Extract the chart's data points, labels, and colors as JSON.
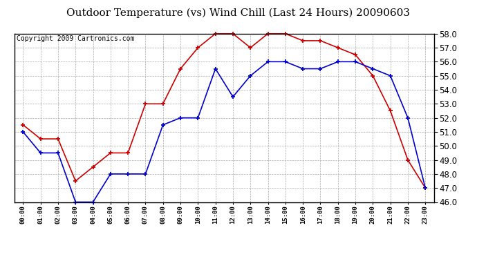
{
  "title": "Outdoor Temperature (vs) Wind Chill (Last 24 Hours) 20090603",
  "copyright": "Copyright 2009 Cartronics.com",
  "hours": [
    "00:00",
    "01:00",
    "02:00",
    "03:00",
    "04:00",
    "05:00",
    "06:00",
    "07:00",
    "08:00",
    "09:00",
    "10:00",
    "11:00",
    "12:00",
    "13:00",
    "14:00",
    "15:00",
    "16:00",
    "17:00",
    "18:00",
    "19:00",
    "20:00",
    "21:00",
    "22:00",
    "23:00"
  ],
  "outdoor_temp": [
    51.5,
    50.5,
    50.5,
    47.5,
    48.5,
    49.5,
    49.5,
    53.0,
    53.0,
    55.5,
    57.0,
    58.0,
    58.0,
    57.0,
    58.0,
    58.0,
    57.5,
    57.5,
    57.0,
    56.5,
    55.0,
    52.5,
    49.0,
    47.0
  ],
  "wind_chill": [
    51.0,
    49.5,
    49.5,
    46.0,
    46.0,
    48.0,
    48.0,
    48.0,
    51.5,
    52.0,
    52.0,
    55.5,
    53.5,
    55.0,
    56.0,
    56.0,
    55.5,
    55.5,
    56.0,
    56.0,
    55.5,
    55.0,
    52.0,
    47.0
  ],
  "temp_color": "#cc0000",
  "chill_color": "#0000cc",
  "ylim_min": 46.0,
  "ylim_max": 58.0,
  "ytick_interval": 1.0,
  "bg_color": "#ffffff",
  "plot_bg_color": "#ffffff",
  "grid_color": "#aaaaaa",
  "title_fontsize": 11,
  "copyright_fontsize": 7,
  "marker": "+",
  "markersize": 5,
  "linewidth": 1.2
}
